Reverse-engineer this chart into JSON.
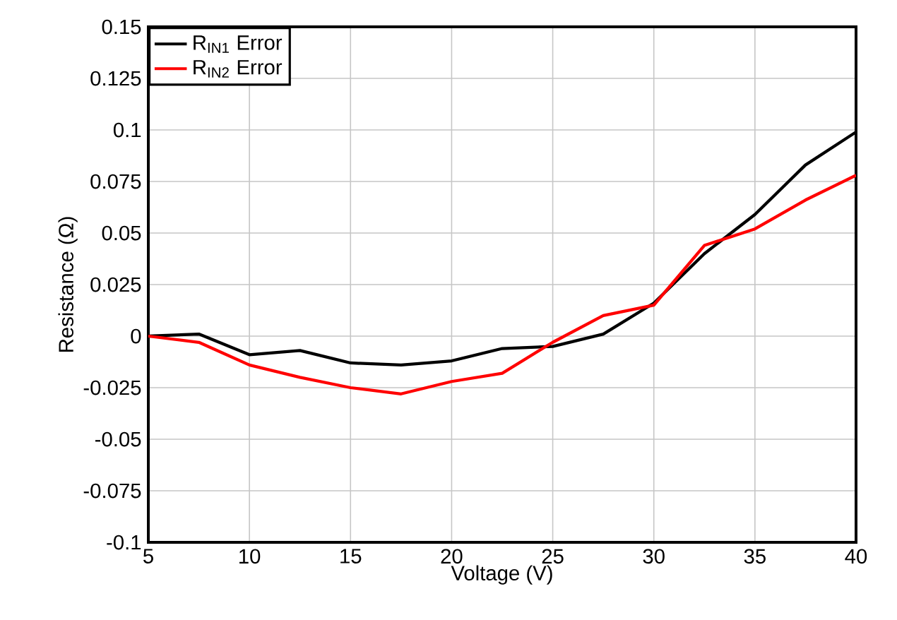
{
  "chart_data": {
    "type": "line",
    "xlabel": "Voltage (V)",
    "ylabel": "Resistance (Ω)",
    "x": [
      5,
      7.5,
      10,
      12.5,
      15,
      17.5,
      20,
      22.5,
      25,
      27.5,
      30,
      32.5,
      35,
      37.5,
      40
    ],
    "series": [
      {
        "name": "R$_{IN1}$ Error",
        "color": "#000000",
        "values": [
          0,
          0.001,
          -0.009,
          -0.007,
          -0.013,
          -0.014,
          -0.012,
          -0.006,
          -0.005,
          0.001,
          0.016,
          0.04,
          0.059,
          0.083,
          0.099
        ]
      },
      {
        "name": "R$_{IN2}$ Error",
        "color": "#ff0000",
        "values": [
          0,
          -0.003,
          -0.014,
          -0.02,
          -0.025,
          -0.028,
          -0.022,
          -0.018,
          -0.003,
          0.01,
          0.015,
          0.044,
          0.052,
          0.066,
          0.078
        ]
      }
    ],
    "xlim": [
      5,
      40
    ],
    "ylim": [
      -0.1,
      0.15
    ],
    "xticks": [
      5,
      10,
      15,
      20,
      25,
      30,
      35,
      40
    ],
    "yticks": [
      -0.1,
      -0.075,
      -0.05,
      -0.025,
      0,
      0.025,
      0.05,
      0.075,
      0.1,
      0.125,
      0.15
    ],
    "grid": true,
    "legend": "top left",
    "marker": "none",
    "line_style": "solid"
  }
}
